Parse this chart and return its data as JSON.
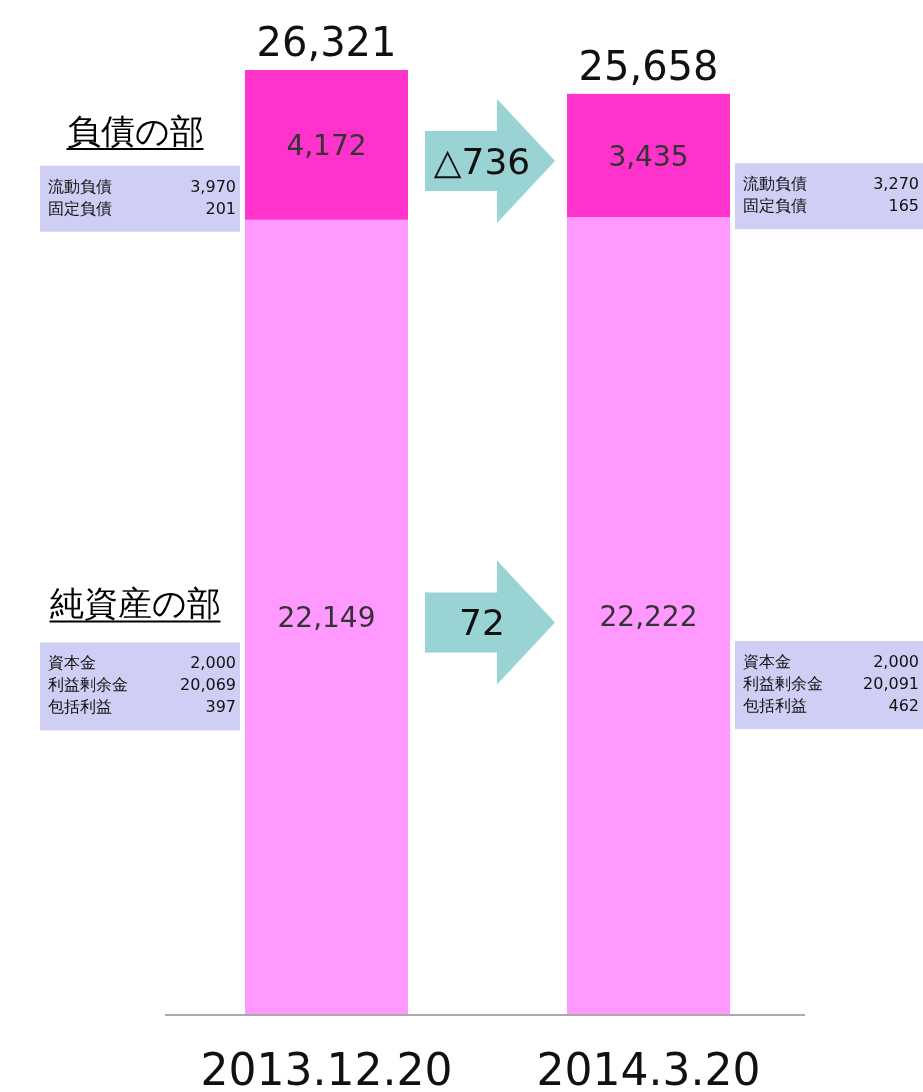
{
  "chart_data": {
    "type": "bar",
    "stacked": true,
    "categories": [
      "2013.12.20",
      "2014.3.20"
    ],
    "series": [
      {
        "name": "純資産の部",
        "color": "#ff99ff",
        "values": [
          22149,
          22222
        ],
        "value_labels": [
          "22,149",
          "22,222"
        ]
      },
      {
        "name": "負債の部",
        "color": "#ff33cc",
        "values": [
          4172,
          3435
        ],
        "value_labels": [
          "4,172",
          "3,435"
        ]
      }
    ],
    "totals": [
      "26,321",
      "25,658"
    ],
    "annotations": [
      "流動負債 3,970",
      "固定負債 201",
      "流動負債 3,270",
      "固定負債 165",
      "資本金 2,000",
      "利益剰余金 20,069",
      "包括利益 397",
      "資本金 2,000",
      "利益剰余金 20,091",
      "包括利益 462",
      "△736",
      "72"
    ]
  }
}
